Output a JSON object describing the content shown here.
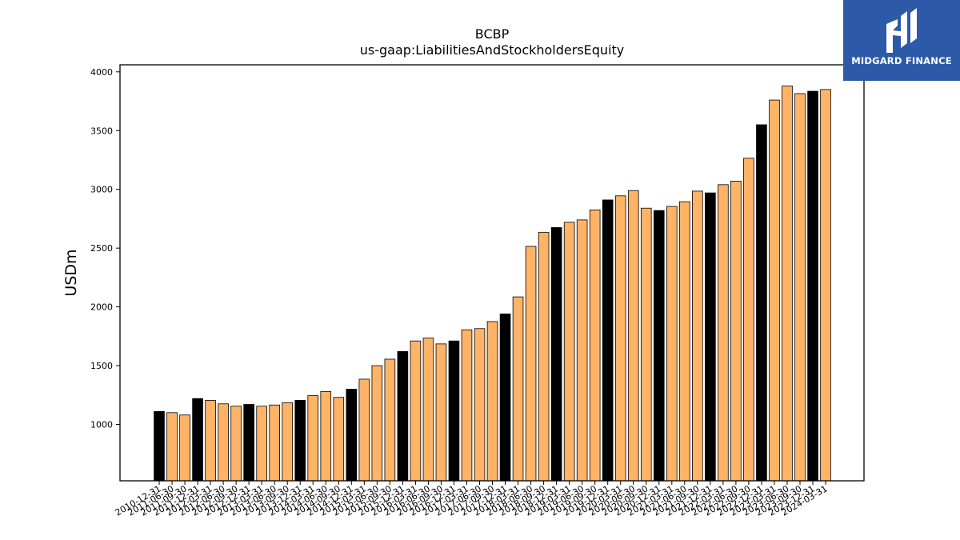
{
  "brand": {
    "name": "MIDGARD FINANCE",
    "background": "#2d5aa8"
  },
  "chart_data": {
    "type": "bar",
    "title": "BCBP",
    "subtitle": "us-gaap:LiabilitiesAndStockholdersEquity",
    "xlabel": "",
    "ylabel": "USDm",
    "ylim": [
      520,
      4060
    ],
    "yticks": [
      1000,
      1500,
      2000,
      2500,
      3000,
      3500,
      4000
    ],
    "grid": false,
    "colors": {
      "annual": "#000000",
      "quarterly": "#ffb366",
      "edge": "#000000"
    },
    "categories": [
      "2010-12-31",
      "2011-06-30",
      "2011-09-30",
      "2011-12-31",
      "2012-03-31",
      "2012-06-30",
      "2012-09-30",
      "2012-12-31",
      "2013-03-31",
      "2013-06-30",
      "2013-09-30",
      "2013-12-31",
      "2014-03-31",
      "2014-06-30",
      "2014-09-30",
      "2014-12-31",
      "2015-03-31",
      "2015-06-30",
      "2015-09-30",
      "2015-12-31",
      "2016-03-31",
      "2016-06-30",
      "2016-09-30",
      "2016-12-31",
      "2017-03-31",
      "2017-06-30",
      "2017-09-30",
      "2017-12-31",
      "2018-03-31",
      "2018-06-30",
      "2018-09-30",
      "2018-12-31",
      "2019-03-31",
      "2019-06-30",
      "2019-09-30",
      "2019-12-31",
      "2020-03-31",
      "2020-06-30",
      "2020-09-30",
      "2020-12-31",
      "2021-03-31",
      "2021-06-30",
      "2021-09-30",
      "2021-12-31",
      "2022-03-31",
      "2022-06-30",
      "2022-09-30",
      "2022-12-31",
      "2023-03-31",
      "2023-06-30",
      "2023-09-30",
      "2023-12-31",
      "2024-03-31"
    ],
    "values": [
      1110,
      1100,
      1080,
      1220,
      1205,
      1175,
      1155,
      1170,
      1155,
      1165,
      1185,
      1205,
      1245,
      1280,
      1230,
      1300,
      1385,
      1500,
      1555,
      1620,
      1710,
      1735,
      1685,
      1710,
      1805,
      1815,
      1875,
      1940,
      2085,
      2515,
      2635,
      2675,
      2720,
      2740,
      2825,
      2910,
      2945,
      2990,
      2840,
      2820,
      2855,
      2895,
      2985,
      2970,
      3040,
      3070,
      3265,
      3550,
      3760,
      3880,
      3815,
      3835,
      3850
    ],
    "annual": [
      true,
      false,
      false,
      true,
      false,
      false,
      false,
      true,
      false,
      false,
      false,
      true,
      false,
      false,
      false,
      true,
      false,
      false,
      false,
      true,
      false,
      false,
      false,
      true,
      false,
      false,
      false,
      true,
      false,
      false,
      false,
      true,
      false,
      false,
      false,
      true,
      false,
      false,
      false,
      true,
      false,
      false,
      false,
      true,
      false,
      false,
      false,
      true,
      false,
      false,
      false,
      true,
      false
    ]
  }
}
